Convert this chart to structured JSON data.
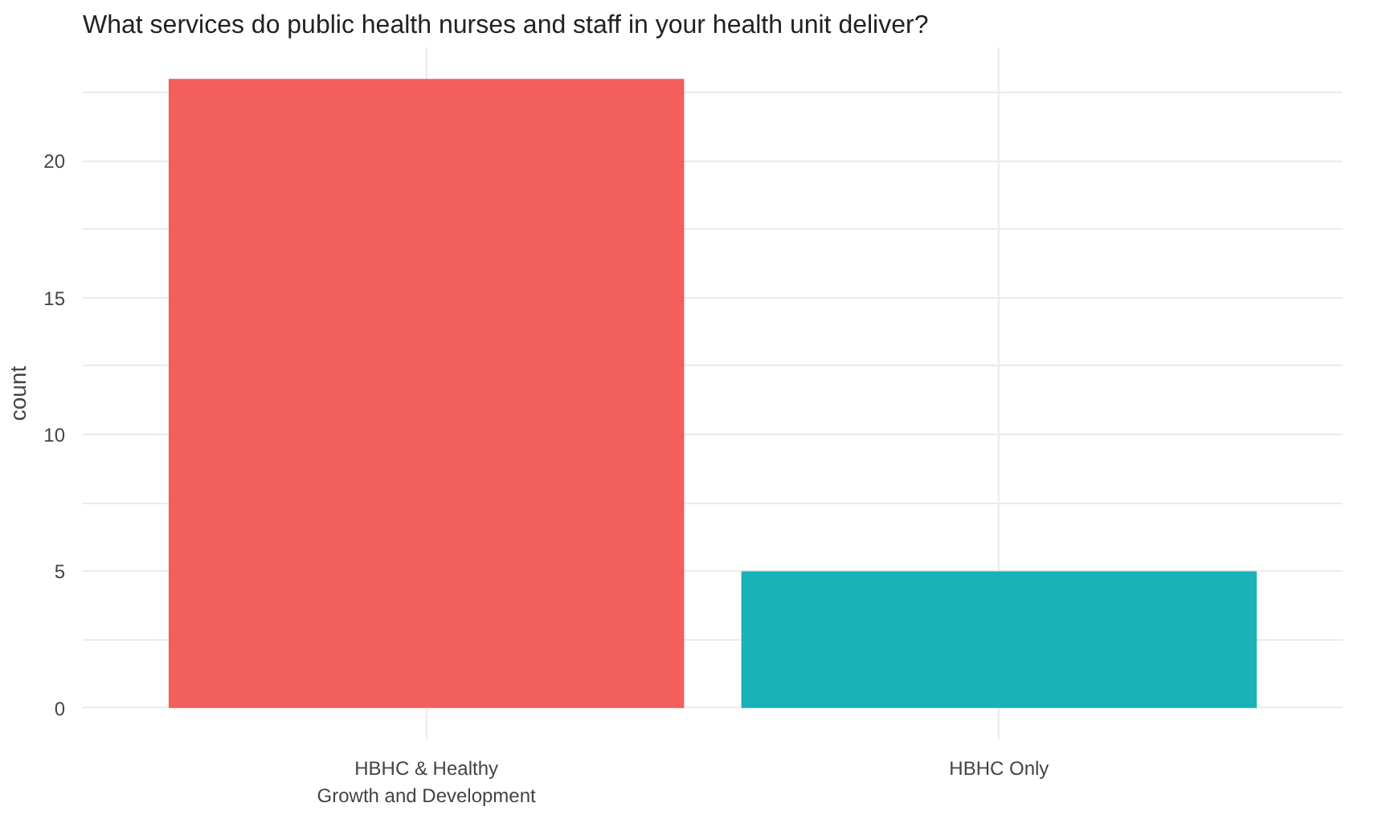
{
  "chart_data": {
    "type": "bar",
    "title": "What services do public health nurses and staff in your health unit deliver?",
    "ylabel": "count",
    "categories": [
      "HBHC & Healthy\nGrowth and Development",
      "HBHC Only"
    ],
    "values": [
      23,
      5
    ],
    "colors": [
      "#f25f5c",
      "#19b2b8"
    ],
    "ylim": [
      -1.15,
      24.15
    ],
    "yticks": [
      0,
      {
        "value": 2.5,
        "label": null
      },
      5,
      {
        "value": 7.5,
        "label": null
      },
      10,
      {
        "value": 12.5,
        "label": null
      },
      15,
      {
        "value": 17.5,
        "label": null
      },
      20,
      {
        "value": 22.5,
        "label": null
      }
    ],
    "grid": true
  }
}
